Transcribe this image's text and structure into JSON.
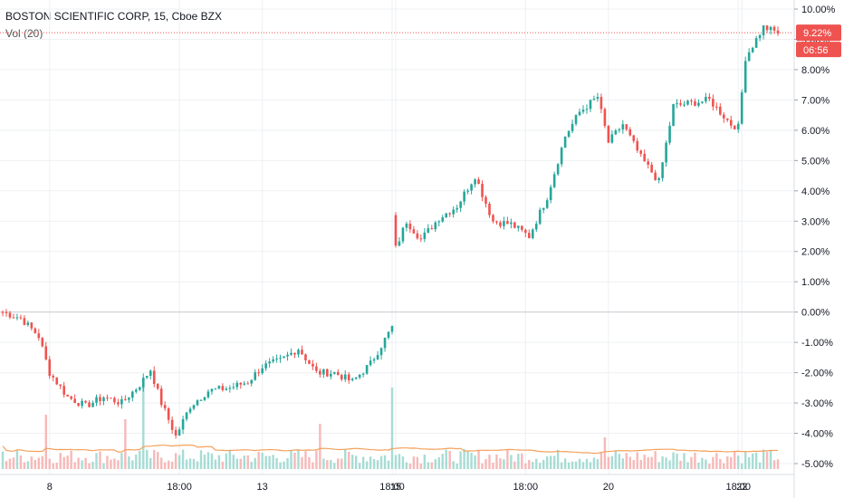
{
  "header": {
    "symbol_title": "BOSTON SCIENTIFIC CORP, 15, Cboe BZX",
    "volume_label": "Vol (20)"
  },
  "colors": {
    "up": "#26a69a",
    "down": "#ef5350",
    "vol_up": "#a7dcd4",
    "vol_down": "#f7b9b8",
    "vol_ma": "#f5a05a",
    "grid": "#eef0f3",
    "price_line": "#ef5350",
    "zero_line": "#c9ccd3"
  },
  "chart_data": {
    "type": "candlestick",
    "y_axis": {
      "unit": "%",
      "ylim": [
        -5.3,
        10.3
      ],
      "ticks": [
        "10.00%",
        "9.00%",
        "8.00%",
        "7.00%",
        "6.00%",
        "5.00%",
        "4.00%",
        "3.00%",
        "2.00%",
        "1.00%",
        "0.00%",
        "-1.00%",
        "-2.00%",
        "-3.00%",
        "-4.00%",
        "-5.00%"
      ],
      "tick_values": [
        10,
        9,
        8,
        7,
        6,
        5,
        4,
        3,
        2,
        1,
        0,
        -1,
        -2,
        -3,
        -4,
        -5
      ]
    },
    "x_axis": {
      "labels": [
        "8",
        "18:00",
        "13",
        "18:00",
        "15",
        "18:00",
        "20",
        "18:00",
        "22"
      ],
      "label_bar_index": [
        13,
        49,
        72,
        108,
        109,
        145,
        168,
        204,
        205
      ]
    },
    "last_value": {
      "label": "9.22%",
      "value": 9.22,
      "countdown": "06:56"
    },
    "path": [
      [
        0,
        0.0
      ],
      [
        5,
        -0.2
      ],
      [
        10,
        -0.8
      ],
      [
        13,
        -2.0
      ],
      [
        18,
        -2.8
      ],
      [
        23,
        -3.1
      ],
      [
        28,
        -2.8
      ],
      [
        33,
        -3.0
      ],
      [
        38,
        -2.4
      ],
      [
        41,
        -1.9
      ],
      [
        44,
        -3.0
      ],
      [
        48,
        -4.1
      ],
      [
        52,
        -3.1
      ],
      [
        57,
        -2.6
      ],
      [
        63,
        -2.5
      ],
      [
        68,
        -2.3
      ],
      [
        72,
        -1.8
      ],
      [
        77,
        -1.6
      ],
      [
        82,
        -1.2
      ],
      [
        87,
        -2.0
      ],
      [
        92,
        -2.0
      ],
      [
        97,
        -2.3
      ],
      [
        102,
        -1.7
      ],
      [
        108,
        -0.5
      ],
      [
        109,
        2.1
      ],
      [
        112,
        3.0
      ],
      [
        116,
        2.4
      ],
      [
        121,
        3.1
      ],
      [
        126,
        3.5
      ],
      [
        131,
        4.5
      ],
      [
        136,
        3.0
      ],
      [
        141,
        2.9
      ],
      [
        146,
        2.5
      ],
      [
        151,
        3.8
      ],
      [
        156,
        5.8
      ],
      [
        160,
        6.6
      ],
      [
        165,
        7.1
      ],
      [
        168,
        5.6
      ],
      [
        172,
        6.2
      ],
      [
        177,
        5.1
      ],
      [
        182,
        4.3
      ],
      [
        186,
        6.8
      ],
      [
        191,
        6.9
      ],
      [
        196,
        7.0
      ],
      [
        202,
        6.2
      ],
      [
        204,
        6.1
      ],
      [
        206,
        8.4
      ],
      [
        211,
        9.4
      ],
      [
        215,
        9.22
      ]
    ],
    "n_bars": 216,
    "volume": {
      "ma_period": 20,
      "spikes": [
        [
          12,
          6.0
        ],
        [
          34,
          5.5
        ],
        [
          39,
          9.0
        ],
        [
          88,
          5.0
        ],
        [
          108,
          9.0
        ],
        [
          167,
          3.5
        ],
        [
          203,
          2.0
        ]
      ]
    }
  }
}
